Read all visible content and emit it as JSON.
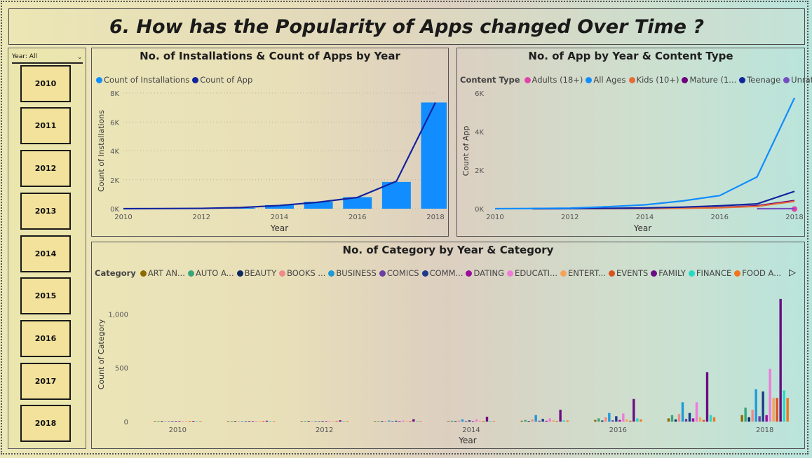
{
  "page": {
    "title": "6. How has the Popularity of Apps changed Over Time ?"
  },
  "slicer": {
    "label": "Year: All",
    "years": [
      "2010",
      "2011",
      "2012",
      "2013",
      "2014",
      "2015",
      "2016",
      "2017",
      "2018"
    ]
  },
  "colors": {
    "installs_bar": "#118dff",
    "app_line": "#12239e"
  },
  "chart_data": [
    {
      "type": "bar",
      "title": "No. of Installations & Count of Apps by Year",
      "xlabel": "Year",
      "ylabel": "Count of Installations",
      "x": [
        2010,
        2011,
        2012,
        2013,
        2014,
        2015,
        2016,
        2017,
        2018
      ],
      "xticks": [
        "2010",
        "2012",
        "2014",
        "2016",
        "2018"
      ],
      "yticks": [
        "0K",
        "2K",
        "4K",
        "6K",
        "8K"
      ],
      "ylim": [
        0,
        8000
      ],
      "grid": true,
      "legend_position": "top-left",
      "series": [
        {
          "name": "Count of Installations",
          "kind": "bar",
          "color": "#118dff",
          "values": [
            1,
            10,
            20,
            60,
            250,
            480,
            800,
            1850,
            7350
          ]
        },
        {
          "name": "Count of App",
          "kind": "line",
          "color": "#12239e",
          "values": [
            1,
            10,
            20,
            80,
            220,
            450,
            780,
            1900,
            7350
          ]
        }
      ]
    },
    {
      "type": "line",
      "title": "No. of App by Year & Content Type",
      "xlabel": "Year",
      "ylabel": "Count of App",
      "legend_title": "Content Type",
      "x": [
        2010,
        2011,
        2012,
        2013,
        2014,
        2015,
        2016,
        2017,
        2018
      ],
      "xticks": [
        "2010",
        "2012",
        "2014",
        "2016",
        "2018"
      ],
      "yticks": [
        "0K",
        "2K",
        "4K",
        "6K"
      ],
      "ylim": [
        0,
        6000
      ],
      "legend_position": "top",
      "series": [
        {
          "name": "Adults (18+)",
          "color": "#e044a7",
          "values": [
            null,
            null,
            null,
            null,
            null,
            null,
            null,
            null,
            1
          ]
        },
        {
          "name": "All Ages",
          "color": "#118dff",
          "values": [
            1,
            10,
            30,
            100,
            200,
            400,
            680,
            1650,
            5750
          ]
        },
        {
          "name": "Kids (10+)",
          "color": "#e66c37",
          "values": [
            null,
            1,
            2,
            5,
            10,
            25,
            50,
            120,
            380
          ]
        },
        {
          "name": "Mature (1...",
          "color": "#6b007b",
          "values": [
            null,
            1,
            2,
            5,
            10,
            30,
            60,
            150,
            420
          ]
        },
        {
          "name": "Teenage",
          "color": "#12239e",
          "values": [
            null,
            1,
            5,
            20,
            40,
            80,
            150,
            250,
            900
          ]
        },
        {
          "name": "Unrated",
          "color": "#744ec2",
          "values": [
            null,
            null,
            null,
            null,
            null,
            null,
            null,
            1,
            2
          ]
        }
      ]
    },
    {
      "type": "bar",
      "title": "No. of Category by Year & Category",
      "xlabel": "Year",
      "ylabel": "Count of Category",
      "legend_title": "Category",
      "x": [
        2010,
        2011,
        2012,
        2013,
        2014,
        2015,
        2016,
        2017,
        2018
      ],
      "xticks": [
        "2010",
        "2012",
        "2014",
        "2016",
        "2018"
      ],
      "yticks": [
        "0",
        "500",
        "1,000"
      ],
      "ylim": [
        0,
        1250
      ],
      "legend_position": "top",
      "categories": [
        "ART AN...",
        "AUTO A...",
        "BEAUTY",
        "BOOKS ...",
        "BUSINESS",
        "COMICS",
        "COMM...",
        "DATING",
        "EDUCATI...",
        "ENTERT...",
        "EVENTS",
        "FAMILY",
        "FINANCE",
        "FOOD A..."
      ],
      "category_colors": [
        "#8b6a00",
        "#3aa67a",
        "#0d2a5e",
        "#f08a8a",
        "#1f9ad6",
        "#6b3fa0",
        "#1e3a8a",
        "#9b0d9b",
        "#f07ad9",
        "#f5a35c",
        "#d9531e",
        "#6a0d83",
        "#26d9c4",
        "#f5731e"
      ],
      "series_values": {
        "2010": [
          0,
          1,
          0,
          0,
          2,
          0,
          0,
          0,
          0,
          0,
          0,
          6,
          0,
          0
        ],
        "2011": [
          0,
          2,
          0,
          1,
          4,
          0,
          1,
          0,
          3,
          0,
          0,
          8,
          0,
          0
        ],
        "2012": [
          1,
          3,
          1,
          2,
          6,
          0,
          3,
          1,
          5,
          1,
          0,
          12,
          1,
          1
        ],
        "2013": [
          2,
          5,
          2,
          5,
          10,
          2,
          8,
          2,
          10,
          4,
          1,
          22,
          3,
          3
        ],
        "2014": [
          4,
          8,
          3,
          10,
          20,
          5,
          12,
          4,
          20,
          8,
          2,
          45,
          6,
          5
        ],
        "2015": [
          8,
          15,
          6,
          20,
          60,
          8,
          25,
          8,
          30,
          12,
          4,
          110,
          12,
          10
        ],
        "2016": [
          15,
          30,
          10,
          40,
          80,
          12,
          50,
          15,
          75,
          20,
          8,
          210,
          30,
          20
        ],
        "2017": [
          30,
          60,
          20,
          70,
          180,
          25,
          80,
          30,
          180,
          40,
          15,
          460,
          60,
          40
        ],
        "2018": [
          60,
          130,
          40,
          110,
          300,
          50,
          280,
          60,
          490,
          220,
          220,
          1140,
          290,
          220
        ]
      }
    }
  ]
}
